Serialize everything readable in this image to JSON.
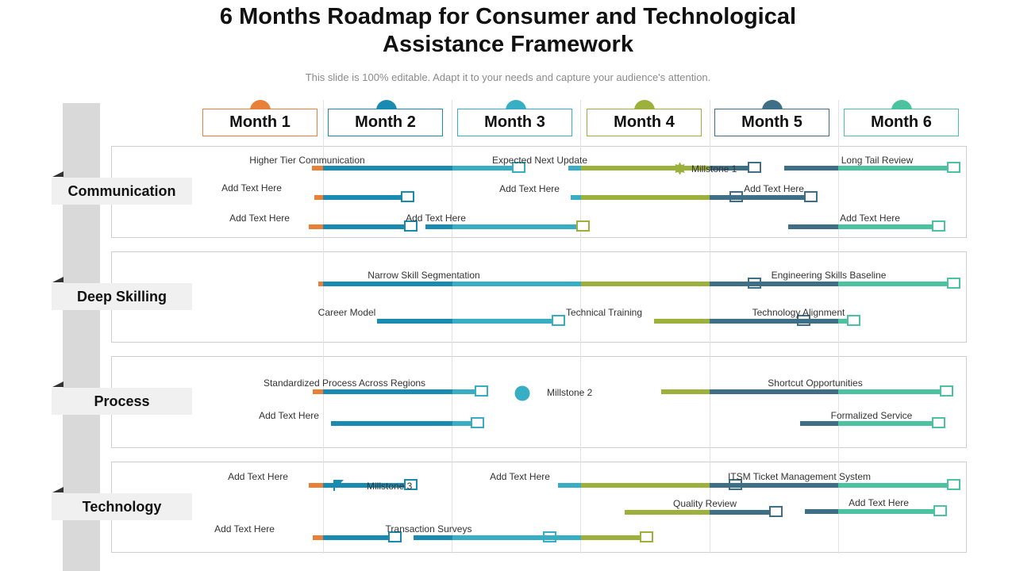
{
  "header": {
    "title_line1": "6 Months Roadmap for Consumer and Technological",
    "title_line2": "Assistance Framework",
    "subtitle": "This slide is 100% editable. Adapt it to your needs and capture your audience's attention."
  },
  "colors": {
    "orange": "#E8803A",
    "blue": "#1A8BB0",
    "teal": "#37AEC3",
    "olive": "#9BB13C",
    "navy": "#3F6F87",
    "green": "#4CC3A0"
  },
  "months": [
    {
      "label": "Month 1",
      "color": "orange"
    },
    {
      "label": "Month 2",
      "color": "blue"
    },
    {
      "label": "Month 3",
      "color": "teal"
    },
    {
      "label": "Month 4",
      "color": "olive"
    },
    {
      "label": "Month 5",
      "color": "navy"
    },
    {
      "label": "Month 6",
      "color": "green"
    }
  ],
  "rows": [
    {
      "label": "Communication"
    },
    {
      "label": "Deep Skilling"
    },
    {
      "label": "Process"
    },
    {
      "label": "Technology"
    }
  ],
  "milestones": [
    {
      "label": "Millstone 1",
      "icon": "gear-icon",
      "color": "olive"
    },
    {
      "label": "Millstone 2",
      "icon": "circle-icon",
      "color": "teal"
    },
    {
      "label": "Millstone 3",
      "icon": "flag-icon",
      "color": "blue"
    }
  ],
  "tasks": [
    {
      "label": "Higher Tier Communication",
      "start_month": 0.91,
      "end_month": 2.55,
      "row": "Communication"
    },
    {
      "label": "Expected Next Update",
      "start_month": 2.9,
      "end_month": 4.38,
      "row": "Communication"
    },
    {
      "label": "Long Tail Review",
      "start_month": 4.58,
      "end_month": 5.93,
      "row": "Communication"
    },
    {
      "label": "Add Text Here",
      "start_month": 0.93,
      "end_month": 1.69,
      "row": "Communication"
    },
    {
      "label": "Add Text Here",
      "start_month": 2.92,
      "end_month": 4.24,
      "row": "Communication"
    },
    {
      "label": "Add Text Here",
      "start_month": 4.1,
      "end_month": 4.82,
      "row": "Communication"
    },
    {
      "label": "Add Text Here",
      "start_month": 0.89,
      "end_month": 1.71,
      "row": "Communication"
    },
    {
      "label": "Add Text Here",
      "start_month": 1.79,
      "end_month": 3.05,
      "row": "Communication"
    },
    {
      "label": "Add Text Here",
      "start_month": 4.61,
      "end_month": 5.81,
      "row": "Communication"
    },
    {
      "label": "Narrow Skill Segmentation",
      "start_month": 0.96,
      "end_month": 4.38,
      "row": "Deep Skilling"
    },
    {
      "label": "Engineering Skills Baseline",
      "start_month": 3.89,
      "end_month": 5.93,
      "row": "Deep Skilling"
    },
    {
      "label": "Career Model",
      "start_month": 1.42,
      "end_month": 2.86,
      "row": "Deep Skilling"
    },
    {
      "label": "Technical Training",
      "start_month": 3.57,
      "end_month": 4.76,
      "row": "Deep Skilling"
    },
    {
      "label": "Technology Alignment",
      "start_month": 4.22,
      "end_month": 5.15,
      "row": "Deep Skilling"
    },
    {
      "label": "Standardized Process Across Regions",
      "start_month": 0.92,
      "end_month": 2.26,
      "row": "Process"
    },
    {
      "label": "Shortcut Opportunities",
      "start_month": 3.62,
      "end_month": 5.87,
      "row": "Process"
    },
    {
      "label": "Add Text Here",
      "start_month": 1.06,
      "end_month": 2.23,
      "row": "Process"
    },
    {
      "label": "Formalized Service",
      "start_month": 4.7,
      "end_month": 5.81,
      "row": "Process"
    },
    {
      "label": "Add Text Here",
      "start_month": 0.89,
      "end_month": 1.71,
      "row": "Technology"
    },
    {
      "label": "Add Text Here",
      "start_month": 2.82,
      "end_month": 4.23,
      "row": "Technology"
    },
    {
      "label": "ITSM Ticket Management System",
      "start_month": 3.34,
      "end_month": 5.93,
      "row": "Technology"
    },
    {
      "label": "Quality Review",
      "start_month": 3.34,
      "end_month": 4.55,
      "row": "Technology"
    },
    {
      "label": "Add Text Here",
      "start_month": 4.74,
      "end_month": 5.82,
      "row": "Technology"
    },
    {
      "label": "Add Text Here",
      "start_month": 0.92,
      "end_month": 1.59,
      "row": "Technology"
    },
    {
      "label": "Transaction Surveys",
      "start_month": 1.7,
      "end_month": 2.79,
      "row": "Technology"
    },
    {
      "label": "",
      "start_month": 2.38,
      "end_month": 3.54,
      "row": "Technology"
    }
  ]
}
